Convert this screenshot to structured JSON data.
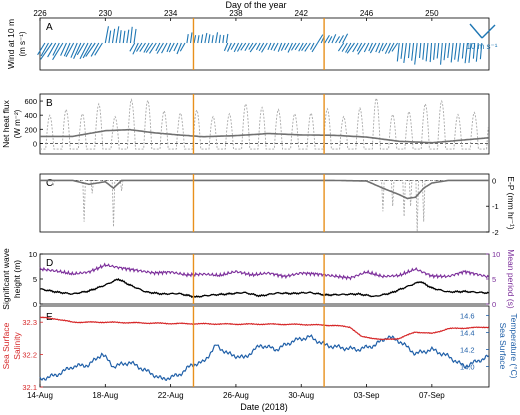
{
  "top_axis": {
    "label": "Day of the year",
    "ticks": [
      226,
      230,
      234,
      238,
      242,
      246,
      250
    ],
    "day_min": 226,
    "day_max": 253.5
  },
  "bottom_axis": {
    "label": "Date (2018)",
    "ticks": [
      {
        "day": 226,
        "label": "14-Aug"
      },
      {
        "day": 230,
        "label": "18-Aug"
      },
      {
        "day": 234,
        "label": "22-Aug"
      },
      {
        "day": 238,
        "label": "26-Aug"
      },
      {
        "day": 242,
        "label": "30-Aug"
      },
      {
        "day": 246,
        "label": "03-Sep"
      },
      {
        "day": 250,
        "label": "07-Sep"
      }
    ]
  },
  "events": [
    {
      "day": 235.4,
      "color": "#E8901C"
    },
    {
      "day": 243.4,
      "color": "#E8901C"
    }
  ],
  "colors": {
    "wind": "#1F77B4",
    "heat_daily": "#A8A8A8",
    "heat_smooth": "#707070",
    "wave_height": "#000000",
    "period": "#7B2D9A",
    "salinity": "#D62728",
    "sst": "#1F5FA8"
  },
  "chart_data": [
    {
      "type": "line",
      "panel": "A",
      "ylabel": "Wind at 10 m\n(m s⁻¹)",
      "legend_scale": "10 m s⁻¹",
      "wind_phases": [
        {
          "start": 226.3,
          "end": 230.0,
          "direction": "south-west",
          "speed_mean": 9
        },
        {
          "start": 230.0,
          "end": 231.8,
          "direction": "north",
          "speed_mean": 8
        },
        {
          "start": 231.8,
          "end": 235.0,
          "direction": "south-west",
          "speed_mean": 6
        },
        {
          "start": 235.0,
          "end": 237.5,
          "direction": "north",
          "speed_mean": 5
        },
        {
          "start": 237.5,
          "end": 243.0,
          "direction": "south-west",
          "speed_mean": 5
        },
        {
          "start": 243.0,
          "end": 244.6,
          "direction": "north-east",
          "speed_mean": 5
        },
        {
          "start": 244.6,
          "end": 248.0,
          "direction": "south-west",
          "speed_mean": 6
        },
        {
          "start": 248.0,
          "end": 253.2,
          "direction": "south",
          "speed_mean": 10
        }
      ]
    },
    {
      "type": "line",
      "panel": "B",
      "ylabel": "Net heat flux\n(W m⁻²)",
      "yticks": [
        0,
        200,
        400,
        600
      ],
      "ylim": [
        -150,
        700
      ],
      "series": [
        {
          "style": "daily-cycle-dotted",
          "day_peaks": [
            400,
            480,
            420,
            560,
            380,
            620,
            610,
            460,
            430,
            470,
            380,
            420,
            560,
            510,
            480,
            420,
            430,
            490,
            380,
            500,
            640,
            410,
            450,
            560,
            600,
            410,
            440
          ],
          "night_value": -80
        },
        {
          "style": "smoothed-solid",
          "x": [
            226,
            228,
            230,
            231.5,
            233,
            234.5,
            236,
            238,
            240,
            242,
            244,
            246,
            248,
            250,
            251.5,
            253.5
          ],
          "values": [
            100,
            100,
            180,
            195,
            150,
            120,
            95,
            110,
            140,
            120,
            115,
            90,
            30,
            10,
            40,
            80
          ]
        }
      ]
    },
    {
      "type": "line",
      "panel": "C",
      "ylabel": "E-P (mm hr⁻¹)",
      "yticks": [
        0,
        -1,
        -2
      ],
      "ylim": [
        -2,
        0.25
      ],
      "series": [
        {
          "style": "smoothed-solid",
          "x": [
            226,
            228,
            229,
            230,
            230.5,
            231,
            233,
            236,
            240,
            244,
            246,
            247,
            248,
            248.5,
            249,
            249.5,
            250,
            251,
            253.5
          ],
          "values": [
            0,
            0,
            -0.15,
            -0.05,
            -0.3,
            0,
            0,
            0,
            0,
            0,
            -0.02,
            -0.3,
            -0.55,
            -0.7,
            -0.65,
            -0.3,
            -0.1,
            0,
            0
          ]
        },
        {
          "style": "hourly-dotted",
          "spikes": [
            {
              "day": 226.8,
              "value": -0.2
            },
            {
              "day": 228.7,
              "value": -1.6
            },
            {
              "day": 229.2,
              "value": -0.5
            },
            {
              "day": 230.5,
              "value": -1.8
            },
            {
              "day": 231.0,
              "value": -0.4
            },
            {
              "day": 247.0,
              "value": -1.2
            },
            {
              "day": 247.6,
              "value": -1.0
            },
            {
              "day": 248.3,
              "value": -1.4
            },
            {
              "day": 248.7,
              "value": -1.0
            },
            {
              "day": 249.1,
              "value": -2.0
            },
            {
              "day": 249.5,
              "value": -1.6
            }
          ]
        }
      ]
    },
    {
      "type": "line",
      "panel": "D",
      "ylabel": "Significant wave\nheight (m)",
      "ylabel_right": "Mean period (s)",
      "yticks": [
        0,
        5,
        10
      ],
      "ylim": [
        0,
        10
      ],
      "series": [
        {
          "axis": "left",
          "x": [
            226,
            227,
            228,
            229,
            230,
            230.8,
            231.5,
            232.5,
            233.5,
            234.5,
            235.5,
            236.5,
            237.5,
            238.5,
            239.5,
            240.5,
            241.5,
            242.5,
            243.5,
            244.5,
            245.5,
            246.5,
            247.5,
            248.5,
            249.3,
            250,
            251,
            252,
            253.5
          ],
          "values": [
            3.0,
            2.4,
            2.0,
            2.6,
            3.8,
            5.0,
            3.8,
            2.4,
            2.0,
            2.1,
            1.4,
            1.8,
            2.0,
            2.3,
            1.6,
            2.2,
            2.1,
            2.3,
            1.8,
            1.9,
            2.0,
            1.5,
            2.2,
            3.5,
            4.5,
            3.2,
            2.4,
            2.5,
            2.2
          ]
        },
        {
          "axis": "right",
          "x": [
            226,
            227,
            228,
            229,
            230,
            231,
            232,
            233,
            234,
            235,
            236,
            237,
            238,
            239,
            240,
            241,
            242,
            243,
            244,
            245,
            246,
            247,
            248,
            249,
            250,
            251,
            252,
            253.5
          ],
          "values": [
            7.0,
            6.6,
            6.0,
            6.4,
            7.8,
            7.2,
            6.7,
            6.2,
            6.4,
            5.8,
            6.0,
            5.7,
            6.5,
            5.8,
            6.2,
            5.5,
            6.2,
            6.0,
            5.6,
            5.2,
            6.4,
            5.5,
            5.7,
            7.0,
            5.6,
            5.5,
            6.5,
            5.4
          ]
        }
      ]
    },
    {
      "type": "line",
      "panel": "E",
      "ylabel": "Sea Surface\nSalinity",
      "ylabel_right": "Sea Surface\nTemperature (°C)",
      "yticks": [
        32.1,
        32.2,
        32.3
      ],
      "ylim": [
        32.1,
        32.35
      ],
      "yticks_right": [
        14.0,
        14.2,
        14.4,
        14.6
      ],
      "ylim_right": [
        13.76,
        14.71
      ],
      "series": [
        {
          "axis": "left",
          "x": [
            226,
            227,
            228,
            230,
            232,
            234,
            236,
            238,
            240,
            242,
            244,
            245,
            245.7,
            246.5,
            247,
            248,
            249,
            250,
            251,
            253.5
          ],
          "values": [
            32.315,
            32.31,
            32.3,
            32.3,
            32.298,
            32.296,
            32.295,
            32.294,
            32.294,
            32.293,
            32.29,
            32.285,
            32.255,
            32.25,
            32.246,
            32.25,
            32.27,
            32.265,
            32.28,
            32.285
          ]
        },
        {
          "axis": "right",
          "x": [
            226,
            227,
            228,
            229,
            229.8,
            230.5,
            231.5,
            232.5,
            233.5,
            234.5,
            235.3,
            236,
            236.8,
            237.5,
            238.5,
            239.5,
            240.5,
            241.5,
            242.5,
            243.5,
            244.5,
            245.5,
            246.5,
            247.3,
            248,
            249,
            250,
            251,
            252,
            253.5
          ],
          "values": [
            13.85,
            13.9,
            14.0,
            14.02,
            14.15,
            14.0,
            14.05,
            13.95,
            13.85,
            13.9,
            14.02,
            14.05,
            14.25,
            14.15,
            14.1,
            14.25,
            14.2,
            14.3,
            14.35,
            14.25,
            14.22,
            14.2,
            14.25,
            14.35,
            14.3,
            14.15,
            14.2,
            14.12,
            14.0,
            14.12
          ]
        }
      ]
    }
  ]
}
